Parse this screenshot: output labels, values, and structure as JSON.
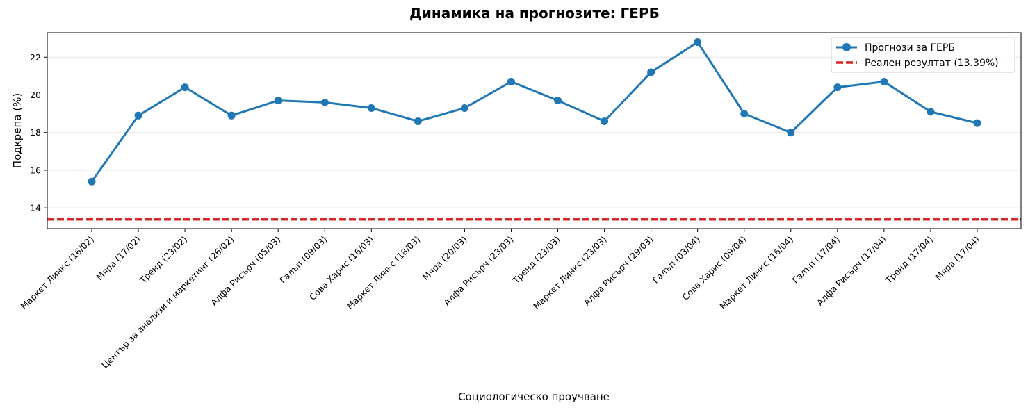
{
  "chart_data": {
    "type": "line",
    "title": "Динамика на прогнозите: ГЕРБ",
    "xlabel": "Социологическо проучване",
    "ylabel": "Подкрепа (%)",
    "ylim": [
      12.9,
      23.3
    ],
    "yticks": [
      14,
      16,
      18,
      20,
      22
    ],
    "grid": "y",
    "legend_position": "top-right",
    "categories": [
      "Маркет Линкс (16/02)",
      "Мяра (17/02)",
      "Тренд (23/02)",
      "Център за анализи и маркетинг (26/02)",
      "Алфа Рисърч (05/03)",
      "Галъп (09/03)",
      "Сова Харис (16/03)",
      "Маркет Линкс (18/03)",
      "Мяра (20/03)",
      "Алфа Рисърч (23/03)",
      "Тренд (23/03)",
      "Маркет Линкс (23/03)",
      "Алфа Рисърч (29/03)",
      "Галъп (03/04)",
      "Сова Харис (09/04)",
      "Маркет Линкс (16/04)",
      "Галъп (17/04)",
      "Алфа Рисърч (17/04)",
      "Тренд (17/04)",
      "Мяра (17/04)"
    ],
    "series": [
      {
        "name": "Прогнози за ГЕРБ",
        "color": "#1f77b4",
        "values": [
          15.4,
          18.9,
          20.4,
          18.9,
          19.7,
          19.6,
          19.3,
          18.6,
          19.3,
          20.7,
          19.7,
          18.6,
          21.2,
          22.8,
          19.0,
          18.0,
          20.4,
          20.7,
          19.1,
          18.5
        ]
      }
    ],
    "reference_line": {
      "name": "Реален резултат (13.39%)",
      "value": 13.39,
      "color": "#d62728",
      "style": "dashed"
    }
  }
}
